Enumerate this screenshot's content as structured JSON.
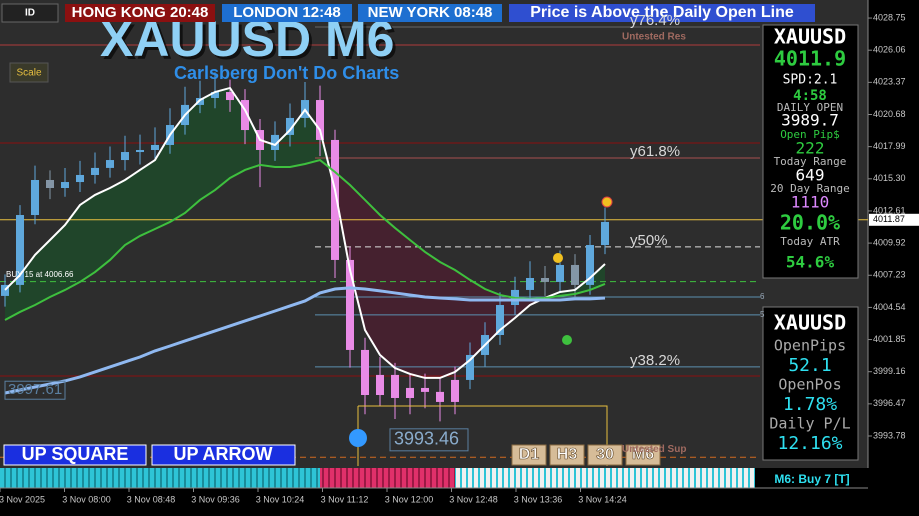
{
  "top_bar": {
    "flag": "ID",
    "clocks": [
      "HONG KONG 20:48",
      "LONDON 12:48",
      "NEW YORK 08:48"
    ],
    "status": "Price is Above the Daily Open Line"
  },
  "scale_button": "Scale",
  "chart_data": {
    "type": "candlestick",
    "title": "XAUUSD M6",
    "subtitle": "Carlsberg Don't Do Charts",
    "time_labels": [
      "3 Nov 2025",
      "3 Nov 08:00",
      "3 Nov 08:48",
      "3 Nov 09:36",
      "3 Nov 10:24",
      "3 Nov 11:12",
      "3 Nov 12:00",
      "3 Nov 12:48",
      "3 Nov 13:36",
      "3 Nov 14:24"
    ],
    "open": [
      4005.5,
      4006.42,
      4012.27,
      4015.2,
      4014.53,
      4015.03,
      4015.62,
      4016.21,
      4016.87,
      4017.54,
      4017.71,
      4018.13,
      4019.8,
      4021.48,
      4022.06,
      4022.56,
      4021.89,
      4019.38,
      4017.71,
      4018.97,
      4020.39,
      4021.89,
      4018.55,
      4008.51,
      4000.98,
      3997.21,
      3998.89,
      3996.96,
      3997.8,
      3997.47,
      3996.63,
      3998.47,
      4000.56,
      4002.23,
      4004.74,
      4006.0,
      4007.0,
      4006.67,
      4008.09,
      4006.42,
      4009.76
    ],
    "high": [
      4007.3,
      4013.1,
      4016.4,
      4016.0,
      4016.2,
      4016.8,
      4017.5,
      4018.0,
      4018.9,
      4019.0,
      4019.6,
      4021.2,
      4023.0,
      4023.5,
      4024.2,
      4023.6,
      4022.8,
      4020.3,
      4020.1,
      4021.6,
      4023.4,
      4023.1,
      4019.4,
      4009.6,
      4002.0,
      4000.4,
      3999.9,
      3998.9,
      3999.0,
      3998.6,
      3999.6,
      4001.6,
      4003.3,
      4005.8,
      4007.1,
      4008.4,
      4008.0,
      4009.3,
      4009.0,
      4010.6,
      4012.9
    ],
    "low": [
      4004.6,
      4005.8,
      4011.5,
      4013.6,
      4013.8,
      4014.2,
      4014.9,
      4015.4,
      4016.0,
      4016.5,
      4016.9,
      4017.4,
      4019.0,
      4020.8,
      4021.2,
      4020.9,
      4018.2,
      4014.6,
      4016.8,
      4018.0,
      4019.6,
      4017.2,
      4007.0,
      3999.5,
      3995.6,
      3996.3,
      3995.2,
      3995.6,
      3996.1,
      3995.0,
      3995.6,
      3997.7,
      3999.6,
      4001.4,
      4003.9,
      4005.2,
      4005.5,
      4005.8,
      4005.4,
      4005.6,
      4009.0
    ],
    "close": [
      4006.42,
      4012.27,
      4015.2,
      4014.53,
      4015.03,
      4015.62,
      4016.21,
      4016.87,
      4017.54,
      4017.71,
      4018.13,
      4019.8,
      4021.48,
      4022.06,
      4022.56,
      4021.89,
      4019.38,
      4017.71,
      4018.97,
      4020.39,
      4021.89,
      4018.55,
      4008.51,
      4000.98,
      3997.21,
      3998.89,
      3996.96,
      3997.8,
      3997.47,
      3996.63,
      3998.47,
      4000.56,
      4002.23,
      4004.74,
      4006.0,
      4007.0,
      4006.67,
      4008.09,
      4006.42,
      4009.76,
      4011.69
    ],
    "bull_color": "#5fa8dc",
    "bear_color": "#8496a6",
    "below_ma_color": "#e98be6",
    "overlays": [
      {
        "color": "#ffffff",
        "values": [
          4006.0,
          4007.25,
          4008.93,
          4010.18,
          4011.44,
          4013.11,
          4013.95,
          4014.53,
          4015.2,
          4016.04,
          4016.87,
          4018.97,
          4020.64,
          4021.89,
          4022.56,
          4022.9,
          4021.06,
          4018.55,
          4018.13,
          4019.38,
          4021.06,
          4019.38,
          4014.36,
          4007.67,
          4002.65,
          4000.56,
          3999.47,
          3998.97,
          3998.64,
          3998.64,
          3999.14,
          4000.14,
          4001.4,
          4002.65,
          4003.66,
          4004.74,
          4005.33,
          4005.83,
          4006.0,
          4007.0,
          4008.17
        ]
      },
      {
        "color": "#3ec03e",
        "values": [
          4003.49,
          4004.16,
          4004.74,
          4005.41,
          4006.0,
          4006.67,
          4007.5,
          4008.51,
          4009.76,
          4010.52,
          4011.1,
          4011.69,
          4012.44,
          4013.53,
          4014.36,
          4015.37,
          4016.04,
          4016.46,
          4016.29,
          4016.29,
          4016.54,
          4016.87,
          4015.87,
          4014.78,
          4013.53,
          4012.27,
          4011.19,
          4010.18,
          4009.18,
          4008.34,
          4007.67,
          4006.84,
          4006.08,
          4005.58,
          4005.33,
          4005.25,
          4005.33,
          4005.5,
          4005.66,
          4006.0,
          4006.5
        ]
      },
      {
        "color": "#8fb8f0",
        "values": [
          3997.38,
          3997.63,
          3997.88,
          3998.13,
          3998.39,
          3998.72,
          3999.14,
          3999.56,
          3999.98,
          4000.39,
          4000.9,
          4001.31,
          4001.73,
          4002.15,
          4002.57,
          4002.99,
          4003.41,
          4003.82,
          4004.24,
          4004.66,
          4005.08,
          4005.75,
          4006.08,
          4006.17,
          4006.08,
          4005.92,
          4005.75,
          4005.58,
          4005.41,
          4005.33,
          4005.25,
          4005.16,
          4005.16,
          4005.16,
          4005.16,
          4005.16,
          4005.16,
          4005.16,
          4005.25,
          4005.25,
          4005.33
        ]
      }
    ],
    "levels": [
      {
        "value": 4028.0,
        "color": "#666666",
        "label": "y76.4%"
      },
      {
        "value": 4026.5,
        "color": "#b03a3a",
        "label": "Untested Res"
      },
      {
        "value": 4018.3,
        "color": "#8b1010"
      },
      {
        "value": 4017.04,
        "color": "#a85050",
        "label": "y61.8%"
      },
      {
        "value": 4009.6,
        "color": "#dddddd",
        "dashed": true,
        "label": "y50%"
      },
      {
        "value": 4006.7,
        "color": "#3ec03e",
        "dashed": true
      },
      {
        "value": 4005.41,
        "color": "#5b8fb0",
        "label": "6"
      },
      {
        "value": 4003.91,
        "color": "#5b8fb0",
        "label": "5"
      },
      {
        "value": 3999.56,
        "color": "#5b8fb0",
        "label": "y38.2%"
      },
      {
        "value": 3998.8,
        "color": "#8b1010"
      },
      {
        "value": 3992.0,
        "color": "#d2691e",
        "dashed": true,
        "label": "Untested Sup"
      }
    ],
    "current_price": 4011.87,
    "current_color": "#e8c040",
    "price_labels": [
      3997.61,
      3993.46
    ],
    "buy_note": "BUY 15 at 4006.66",
    "ylim": [
      3991.27,
      4030.26
    ],
    "yticks": [
      4028.75,
      4026.06,
      4023.37,
      4020.68,
      4017.99,
      {
        "value": 4015.3,
        "label": "4015.30"
      },
      4012.61,
      4009.92,
      4007.23,
      4004.54,
      4001.85,
      3999.16,
      3996.47,
      3993.78
    ]
  },
  "info_panel": {
    "symbol": "XAUUSD",
    "price": 4011.9,
    "spread": "SPD:2.1",
    "timer": "4:58",
    "daily_open_label": "DAILY OPEN",
    "daily_open": 3989.7,
    "open_pips_label": "Open Pip$",
    "open_pips": 222,
    "today_range_label": "Today Range",
    "today_range": 649,
    "day20_range_label": "20 Day Range",
    "day20_range": 1110,
    "range_pct": "20.0%",
    "atr_label": "Today ATR",
    "atr_pct": "54.6%"
  },
  "position_panel": {
    "symbol": "XAUUSD",
    "open_pips_label": "OpenPips",
    "open_pips": 52.1,
    "open_pos_label": "OpenPos",
    "open_pos": "1.78%",
    "daily_pl_label": "Daily P/L",
    "daily_pl": "12.16%"
  },
  "buttons": [
    "UP SQUARE",
    "UP ARROW"
  ],
  "timeframes": [
    "D1",
    "H3",
    "30",
    "M6"
  ],
  "signal": "M6: Buy 7 [T]"
}
